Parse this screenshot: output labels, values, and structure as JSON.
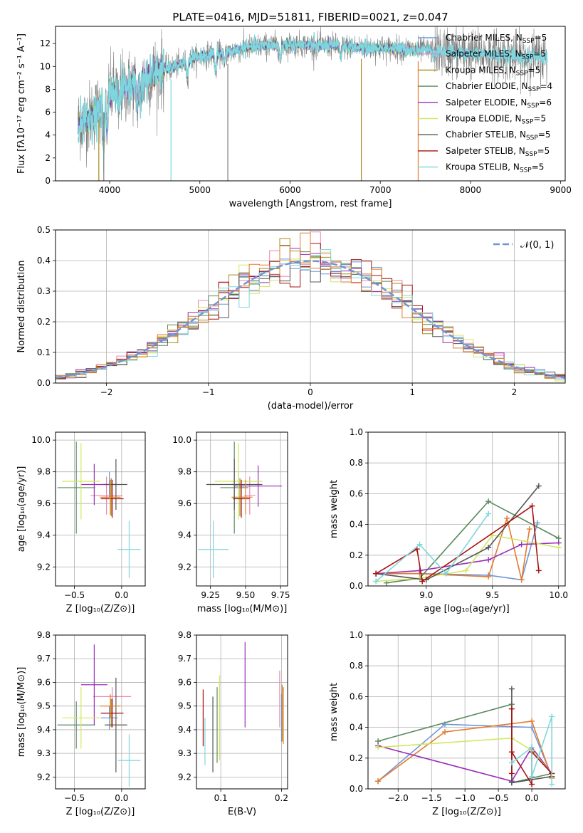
{
  "figure_title": "PLATE=0416, MJD=51811, FIBERID=0021, z=0.047",
  "colors": {
    "blue": "#6f95d8",
    "pink": "#e889b3",
    "olive": "#aa8a1a",
    "green": "#5a8a5c",
    "purple": "#9a2fb8",
    "yellowgreen": "#d0e862",
    "darkgray": "#555555",
    "darkred": "#a81212",
    "cyan": "#7fd6dc",
    "orange": "#e37a2e",
    "gray": "#7f7f7f"
  },
  "chart_data": [
    {
      "id": "spectrum",
      "type": "line",
      "title": "",
      "xlabel": "wavelength [Angstrom, rest frame]",
      "ylabel": "Flux [fλ10⁻¹⁷ erg cm⁻² s⁻¹ A⁻¹]",
      "xlim": [
        3400,
        9050
      ],
      "ylim": [
        0,
        13.5
      ],
      "xticks": [
        4000,
        5000,
        6000,
        7000,
        8000,
        9000
      ],
      "yticks": [
        0,
        2,
        4,
        6,
        8,
        10,
        12
      ],
      "legend_position": "top-right",
      "legend": [
        {
          "label": "Chabrier MILES, N",
          "sub": "SSP",
          "suffix": "=5",
          "color": "blue"
        },
        {
          "label": "Salpeter MILES, N",
          "sub": "SSP",
          "suffix": "=5",
          "color": "pink"
        },
        {
          "label": "Kroupa MILES, N",
          "sub": "SSP",
          "suffix": "=5",
          "color": "olive"
        },
        {
          "label": "Chabrier ELODIE, N",
          "sub": "SSP",
          "suffix": "=4",
          "color": "green"
        },
        {
          "label": "Salpeter ELODIE, N",
          "sub": "SSP",
          "suffix": "=6",
          "color": "purple"
        },
        {
          "label": "Kroupa ELODIE, N",
          "sub": "SSP",
          "suffix": "=5",
          "color": "yellowgreen"
        },
        {
          "label": "Chabrier STELIB, N",
          "sub": "SSP",
          "suffix": "=5",
          "color": "darkgray"
        },
        {
          "label": "Salpeter STELIB, N",
          "sub": "SSP",
          "suffix": "=5",
          "color": "darkred"
        },
        {
          "label": "Kroupa STELIB, N",
          "sub": "SSP",
          "suffix": "=5",
          "color": "cyan"
        }
      ],
      "continuum": [
        [
          3640,
          5.0
        ],
        [
          3700,
          5.1
        ],
        [
          3780,
          5.6
        ],
        [
          3850,
          6.0
        ],
        [
          3920,
          6.8
        ],
        [
          3980,
          7.6
        ],
        [
          4050,
          7.9
        ],
        [
          4150,
          8.1
        ],
        [
          4250,
          8.4
        ],
        [
          4350,
          8.6
        ],
        [
          4450,
          9.2
        ],
        [
          4550,
          9.6
        ],
        [
          4700,
          9.9
        ],
        [
          4850,
          10.4
        ],
        [
          5000,
          10.9
        ],
        [
          5150,
          11.1
        ],
        [
          5300,
          11.2
        ],
        [
          5500,
          11.6
        ],
        [
          5700,
          11.8
        ],
        [
          5900,
          11.9
        ],
        [
          6100,
          11.9
        ],
        [
          6300,
          11.8
        ],
        [
          6500,
          11.8
        ],
        [
          6700,
          11.7
        ],
        [
          6900,
          11.6
        ],
        [
          7100,
          11.6
        ],
        [
          7300,
          11.5
        ],
        [
          7500,
          11.4
        ],
        [
          7700,
          11.3
        ],
        [
          7900,
          11.2
        ],
        [
          8100,
          11.1
        ],
        [
          8300,
          11.0
        ],
        [
          8500,
          10.9
        ],
        [
          8800,
          10.8
        ]
      ],
      "noise": [
        3650,
        8850
      ],
      "absorption_lines": [
        {
          "x": 3934,
          "depth": 4.5
        },
        {
          "x": 3970,
          "depth": 3.5
        },
        {
          "x": 4101,
          "depth": 2.0
        },
        {
          "x": 4305,
          "depth": 1.8
        },
        {
          "x": 4341,
          "depth": 1.5
        },
        {
          "x": 4861,
          "depth": 1.5
        },
        {
          "x": 5175,
          "depth": 1.8
        },
        {
          "x": 5270,
          "depth": 1.0
        },
        {
          "x": 5893,
          "depth": 1.6
        },
        {
          "x": 6563,
          "depth": 1.0
        }
      ],
      "vertical_drops": [
        {
          "x": 3880,
          "color": "olive",
          "bottom": 0
        },
        {
          "x": 3935,
          "color": "gray",
          "bottom": 0
        },
        {
          "x": 4680,
          "color": "cyan",
          "bottom": 0
        },
        {
          "x": 5310,
          "color": "gray",
          "bottom": 0
        },
        {
          "x": 6790,
          "color": "olive",
          "bottom": 0
        },
        {
          "x": 7420,
          "color": "orange",
          "bottom": 0
        }
      ]
    },
    {
      "id": "residuals",
      "type": "bar",
      "title": "",
      "xlabel": "(data-model)/error",
      "ylabel": "Normed distribution",
      "xlim": [
        -2.5,
        2.5
      ],
      "ylim": [
        0,
        0.5
      ],
      "xticks": [
        -2,
        -1,
        0,
        1,
        2
      ],
      "yticks": [
        0.0,
        0.1,
        0.2,
        0.3,
        0.4,
        0.5
      ],
      "legend_position": "top-right",
      "legend": [
        {
          "label": "𝒩(0, 1)",
          "color": "blue",
          "dashed": true
        }
      ],
      "bin_width": 0.1
    },
    {
      "id": "age_vs_Z",
      "type": "scatter",
      "title": "",
      "xlabel": "Z [log₁₀(Z/Z⊙)]",
      "ylabel": "age  [log₁₀(age/yr)]",
      "xlim": [
        -0.7,
        0.25
      ],
      "ylim": [
        9.08,
        10.05
      ],
      "xticks": [
        -0.5,
        0.0
      ],
      "yticks": [
        9.2,
        9.4,
        9.6,
        9.8,
        10.0
      ],
      "points": [
        {
          "x": -0.13,
          "y": 9.72,
          "xerr": 0.09,
          "yerr": 0.08,
          "color": "blue"
        },
        {
          "x": -0.16,
          "y": 9.65,
          "xerr": 0.17,
          "yerr": 0.12,
          "color": "pink"
        },
        {
          "x": -0.11,
          "y": 9.64,
          "xerr": 0.1,
          "yerr": 0.12,
          "color": "olive"
        },
        {
          "x": -0.48,
          "y": 9.7,
          "xerr": 0.2,
          "yerr": 0.29,
          "color": "green"
        },
        {
          "x": -0.29,
          "y": 9.72,
          "xerr": 0.14,
          "yerr": 0.13,
          "color": "purple"
        },
        {
          "x": -0.43,
          "y": 9.74,
          "xerr": 0.2,
          "yerr": 0.24,
          "color": "yellowgreen"
        },
        {
          "x": -0.06,
          "y": 9.72,
          "xerr": 0.12,
          "yerr": 0.16,
          "color": "darkgray"
        },
        {
          "x": -0.1,
          "y": 9.63,
          "xerr": 0.12,
          "yerr": 0.12,
          "color": "darkred"
        },
        {
          "x": 0.08,
          "y": 9.31,
          "xerr": 0.12,
          "yerr": 0.18,
          "color": "cyan"
        },
        {
          "x": -0.12,
          "y": 9.64,
          "xerr": 0.11,
          "yerr": 0.11,
          "color": "orange"
        }
      ]
    },
    {
      "id": "age_vs_mass",
      "type": "scatter",
      "title": "",
      "xlabel": "mass [log₁₀(M/M⊙)]",
      "ylabel": "",
      "xlim": [
        9.15,
        9.8
      ],
      "ylim": [
        9.08,
        10.05
      ],
      "xticks": [
        9.25,
        9.5,
        9.75
      ],
      "yticks": [
        9.2,
        9.4,
        9.6,
        9.8,
        10.0
      ],
      "points": [
        {
          "x": 9.45,
          "y": 9.72,
          "xerr": 0.05,
          "yerr": 0.08,
          "color": "blue"
        },
        {
          "x": 9.53,
          "y": 9.65,
          "xerr": 0.04,
          "yerr": 0.12,
          "color": "pink"
        },
        {
          "x": 9.46,
          "y": 9.64,
          "xerr": 0.06,
          "yerr": 0.12,
          "color": "olive"
        },
        {
          "x": 9.42,
          "y": 9.7,
          "xerr": 0.1,
          "yerr": 0.29,
          "color": "green"
        },
        {
          "x": 9.59,
          "y": 9.71,
          "xerr": 0.17,
          "yerr": 0.13,
          "color": "purple"
        },
        {
          "x": 9.45,
          "y": 9.74,
          "xerr": 0.17,
          "yerr": 0.24,
          "color": "yellowgreen"
        },
        {
          "x": 9.42,
          "y": 9.72,
          "xerr": 0.2,
          "yerr": 0.16,
          "color": "darkgray"
        },
        {
          "x": 9.47,
          "y": 9.63,
          "xerr": 0.06,
          "yerr": 0.12,
          "color": "darkred"
        },
        {
          "x": 9.27,
          "y": 9.31,
          "xerr": 0.11,
          "yerr": 0.18,
          "color": "cyan"
        },
        {
          "x": 9.5,
          "y": 9.64,
          "xerr": 0.05,
          "yerr": 0.11,
          "color": "orange"
        }
      ]
    },
    {
      "id": "weight_vs_age",
      "type": "line",
      "title": "",
      "xlabel": "age  [log₁₀(age/yr)]",
      "ylabel": "mass weight",
      "xlim": [
        8.56,
        10.05
      ],
      "ylim": [
        0,
        1.0
      ],
      "xticks": [
        9.0,
        9.5,
        10.0
      ],
      "yticks": [
        0.0,
        0.2,
        0.4,
        0.6,
        0.8,
        1.0
      ],
      "series": [
        {
          "color": "blue",
          "x": [
            8.62,
            8.95,
            9.47,
            9.72,
            9.84
          ],
          "y": [
            0.08,
            0.08,
            0.07,
            0.04,
            0.41
          ]
        },
        {
          "color": "orange",
          "x": [
            8.62,
            8.95,
            9.47,
            9.61,
            9.72,
            9.78
          ],
          "y": [
            0.08,
            0.08,
            0.06,
            0.44,
            0.04,
            0.37
          ]
        },
        {
          "color": "green",
          "x": [
            8.7,
            8.95,
            9.47,
            10.0
          ],
          "y": [
            0.02,
            0.05,
            0.55,
            0.31
          ]
        },
        {
          "color": "purple",
          "x": [
            8.62,
            8.95,
            9.47,
            9.72,
            10.0
          ],
          "y": [
            0.08,
            0.1,
            0.17,
            0.27,
            0.28
          ]
        },
        {
          "color": "yellowgreen",
          "x": [
            8.62,
            8.95,
            9.3,
            9.5,
            10.0
          ],
          "y": [
            0.03,
            0.05,
            0.1,
            0.33,
            0.25
          ]
        },
        {
          "color": "darkgray",
          "x": [
            8.62,
            9.0,
            9.47,
            9.85
          ],
          "y": [
            0.08,
            0.04,
            0.25,
            0.65
          ]
        },
        {
          "color": "darkred",
          "x": [
            8.62,
            8.93,
            8.97,
            9.8,
            9.85
          ],
          "y": [
            0.08,
            0.24,
            0.03,
            0.52,
            0.1
          ]
        },
        {
          "color": "cyan",
          "x": [
            8.62,
            8.95,
            9.15,
            9.47
          ],
          "y": [
            0.03,
            0.27,
            0.08,
            0.47
          ]
        }
      ]
    },
    {
      "id": "mass_vs_Z",
      "type": "scatter",
      "title": "",
      "xlabel": "Z [log₁₀(Z/Z⊙)]",
      "ylabel": "mass [log₁₀(M/M⊙)]",
      "xlim": [
        -0.7,
        0.25
      ],
      "ylim": [
        9.15,
        9.8
      ],
      "xticks": [
        -0.5,
        0.0
      ],
      "yticks": [
        9.2,
        9.3,
        9.4,
        9.5,
        9.6,
        9.7,
        9.8
      ],
      "points": [
        {
          "x": -0.13,
          "y": 9.45,
          "xerr": 0.09,
          "yerr": 0.05,
          "color": "blue"
        },
        {
          "x": -0.1,
          "y": 9.54,
          "xerr": 0.2,
          "yerr": 0.04,
          "color": "pink"
        },
        {
          "x": -0.11,
          "y": 9.47,
          "xerr": 0.1,
          "yerr": 0.06,
          "color": "olive"
        },
        {
          "x": -0.48,
          "y": 9.42,
          "xerr": 0.2,
          "yerr": 0.1,
          "color": "green"
        },
        {
          "x": -0.29,
          "y": 9.59,
          "xerr": 0.14,
          "yerr": 0.17,
          "color": "purple"
        },
        {
          "x": -0.43,
          "y": 9.45,
          "xerr": 0.2,
          "yerr": 0.13,
          "color": "yellowgreen"
        },
        {
          "x": -0.06,
          "y": 9.42,
          "xerr": 0.12,
          "yerr": 0.2,
          "color": "darkgray"
        },
        {
          "x": -0.1,
          "y": 9.47,
          "xerr": 0.12,
          "yerr": 0.06,
          "color": "darkred"
        },
        {
          "x": 0.08,
          "y": 9.27,
          "xerr": 0.12,
          "yerr": 0.11,
          "color": "cyan"
        },
        {
          "x": -0.12,
          "y": 9.5,
          "xerr": 0.11,
          "yerr": 0.05,
          "color": "orange"
        }
      ]
    },
    {
      "id": "mass_vs_ebv",
      "type": "scatter",
      "title": "",
      "xlabel": "E(B-V)",
      "ylabel": "",
      "xlim": [
        0.06,
        0.21
      ],
      "ylim": [
        9.15,
        9.8
      ],
      "xticks": [
        0.1,
        0.2
      ],
      "yticks": [
        9.2,
        9.3,
        9.4,
        9.5,
        9.6,
        9.7,
        9.8
      ],
      "points": [
        {
          "x": 0.2,
          "y": 9.45,
          "yerr": 0.1,
          "color": "blue"
        },
        {
          "x": 0.197,
          "y": 9.53,
          "yerr": 0.12,
          "color": "pink"
        },
        {
          "x": 0.201,
          "y": 9.47,
          "yerr": 0.12,
          "color": "olive"
        },
        {
          "x": 0.094,
          "y": 9.42,
          "yerr": 0.16,
          "color": "green"
        },
        {
          "x": 0.14,
          "y": 9.59,
          "yerr": 0.18,
          "color": "purple"
        },
        {
          "x": 0.098,
          "y": 9.45,
          "yerr": 0.18,
          "color": "yellowgreen"
        },
        {
          "x": 0.087,
          "y": 9.38,
          "yerr": 0.16,
          "color": "darkgray"
        },
        {
          "x": 0.071,
          "y": 9.45,
          "yerr": 0.12,
          "color": "darkred"
        },
        {
          "x": 0.074,
          "y": 9.35,
          "yerr": 0.1,
          "color": "cyan"
        },
        {
          "x": 0.203,
          "y": 9.46,
          "yerr": 0.12,
          "color": "orange"
        }
      ]
    },
    {
      "id": "weight_vs_Z",
      "type": "line",
      "title": "",
      "xlabel": "Z [log₁₀(Z/Z⊙)]",
      "ylabel": "mass weight",
      "xlim": [
        -2.45,
        0.5
      ],
      "ylim": [
        0,
        1.0
      ],
      "xticks": [
        -2.0,
        -1.5,
        -1.0,
        -0.5,
        0.0
      ],
      "yticks": [
        0.0,
        0.2,
        0.4,
        0.6,
        0.8,
        1.0
      ],
      "series": [
        {
          "color": "blue",
          "x": [
            -2.3,
            -1.3,
            0.0,
            0.3
          ],
          "y": [
            0.05,
            0.42,
            0.4,
            0.08
          ]
        },
        {
          "color": "orange",
          "x": [
            -2.3,
            -1.3,
            0.0,
            0.3
          ],
          "y": [
            0.05,
            0.37,
            0.44,
            0.07
          ]
        },
        {
          "color": "green",
          "x": [
            -2.3,
            -0.3,
            -0.3,
            0.3
          ],
          "y": [
            0.31,
            0.55,
            0.04,
            0.1
          ]
        },
        {
          "color": "purple",
          "x": [
            -2.3,
            -0.3,
            0.0,
            0.3
          ],
          "y": [
            0.28,
            0.05,
            0.27,
            0.1
          ]
        },
        {
          "color": "yellowgreen",
          "x": [
            -2.3,
            -0.3,
            0.0,
            0.3
          ],
          "y": [
            0.27,
            0.33,
            0.25,
            0.1
          ]
        },
        {
          "color": "darkgray",
          "x": [
            -0.3,
            -0.3,
            0.3
          ],
          "y": [
            0.65,
            0.04,
            0.08
          ]
        },
        {
          "color": "darkred",
          "x": [
            -0.3,
            -0.3,
            -0.3,
            0.0,
            0.0,
            0.3
          ],
          "y": [
            0.52,
            0.1,
            0.24,
            0.03,
            0.24,
            0.1
          ]
        },
        {
          "color": "cyan",
          "x": [
            -0.3,
            0.0,
            0.0,
            0.3,
            0.3
          ],
          "y": [
            0.17,
            0.27,
            0.08,
            0.47,
            0.03
          ]
        }
      ]
    }
  ]
}
